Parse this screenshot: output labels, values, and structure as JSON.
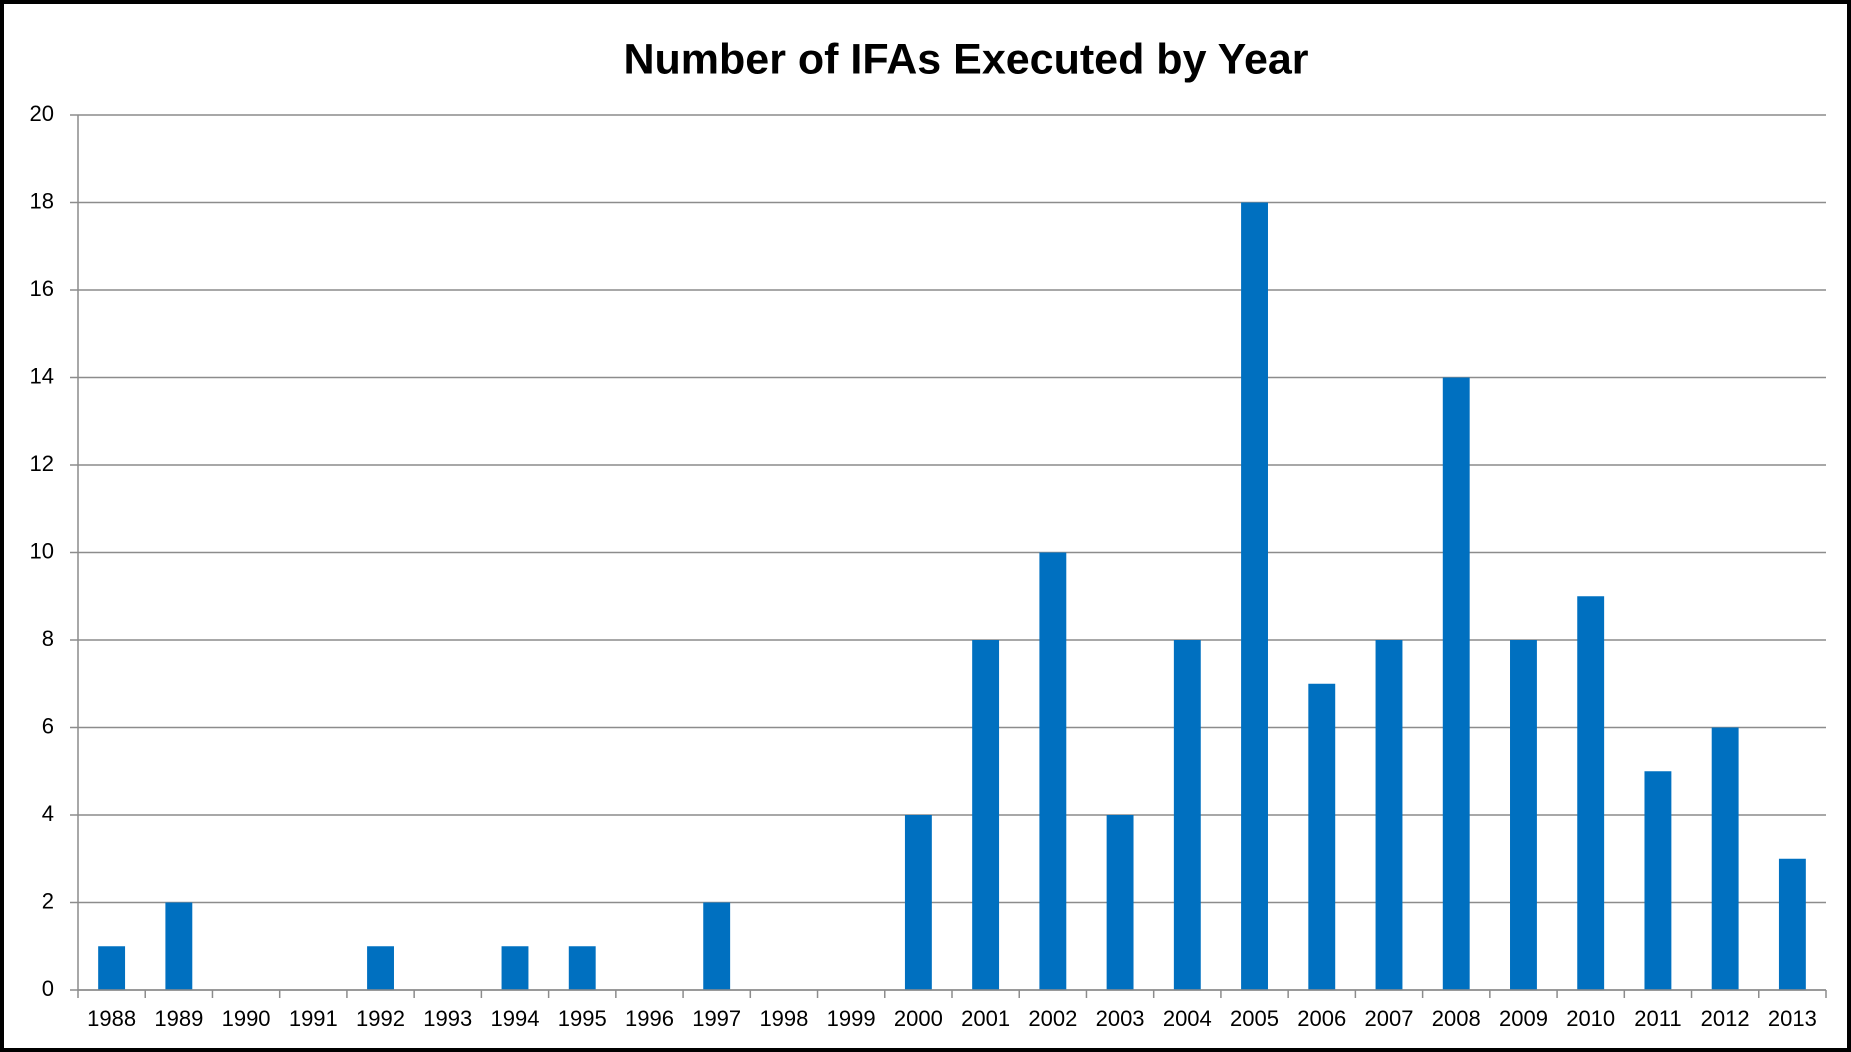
{
  "chart_data": {
    "type": "bar",
    "title": "Number of IFAs Executed by Year",
    "categories": [
      "1988",
      "1989",
      "1990",
      "1991",
      "1992",
      "1993",
      "1994",
      "1995",
      "1996",
      "1997",
      "1998",
      "1999",
      "2000",
      "2001",
      "2002",
      "2003",
      "2004",
      "2005",
      "2006",
      "2007",
      "2008",
      "2009",
      "2010",
      "2011",
      "2012",
      "2013"
    ],
    "values": [
      1,
      2,
      0,
      0,
      1,
      0,
      1,
      1,
      0,
      2,
      0,
      0,
      4,
      8,
      10,
      4,
      8,
      18,
      7,
      8,
      14,
      8,
      9,
      5,
      6,
      3
    ],
    "color": "#0070c0",
    "ylim": [
      0,
      20
    ],
    "yticks": [
      0,
      2,
      4,
      6,
      8,
      10,
      12,
      14,
      16,
      18,
      20
    ],
    "grid": true
  }
}
